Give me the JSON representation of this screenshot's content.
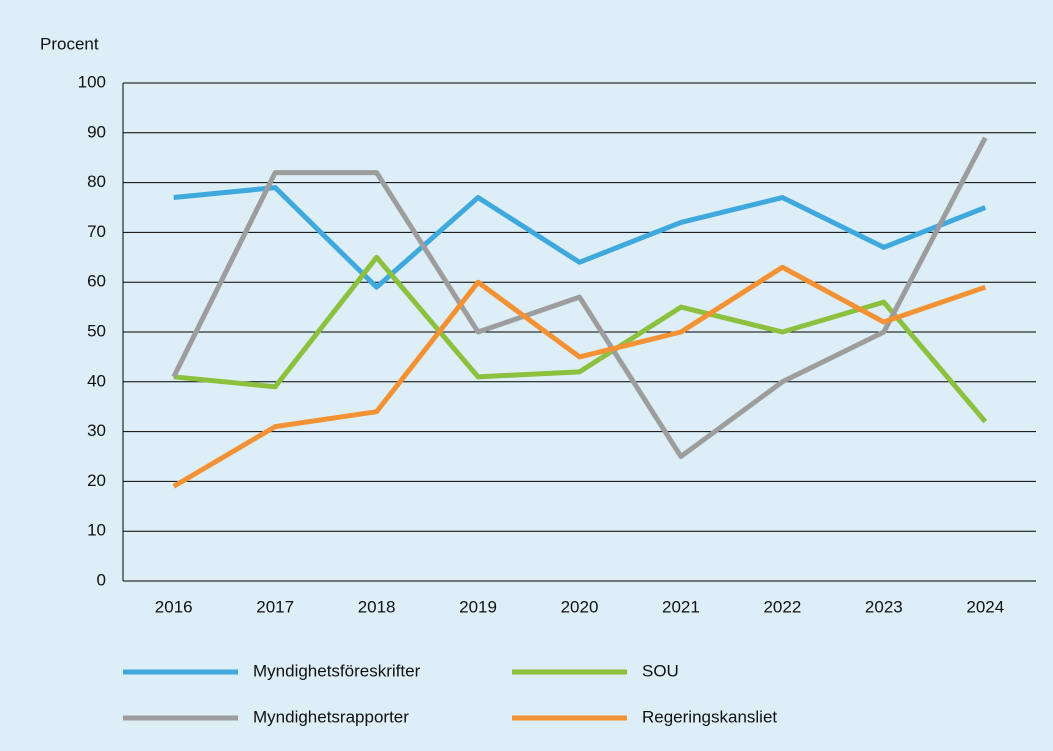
{
  "chart_data": {
    "type": "line",
    "y_label": "Procent",
    "categories": [
      "2016",
      "2017",
      "2018",
      "2019",
      "2020",
      "2021",
      "2022",
      "2023",
      "2024"
    ],
    "series": [
      {
        "name": "Myndighetsföreskrifter",
        "color": "#3fa9dd",
        "values": [
          77,
          79,
          59,
          77,
          64,
          72,
          77,
          67,
          75
        ]
      },
      {
        "name": "SOU",
        "color": "#8cc03f",
        "values": [
          41,
          39,
          65,
          41,
          42,
          55,
          50,
          56,
          32
        ]
      },
      {
        "name": "Myndighetsrapporter",
        "color": "#9d9d9d",
        "values": [
          41,
          82,
          82,
          50,
          57,
          25,
          40,
          50,
          89
        ]
      },
      {
        "name": "Regeringskansliet",
        "color": "#f39234",
        "values": [
          19,
          31,
          34,
          60,
          45,
          50,
          63,
          52,
          59
        ]
      }
    ],
    "ylim": [
      0,
      100
    ],
    "yticks": [
      0,
      10,
      20,
      30,
      40,
      50,
      60,
      70,
      80,
      90,
      100
    ],
    "grid": true
  }
}
